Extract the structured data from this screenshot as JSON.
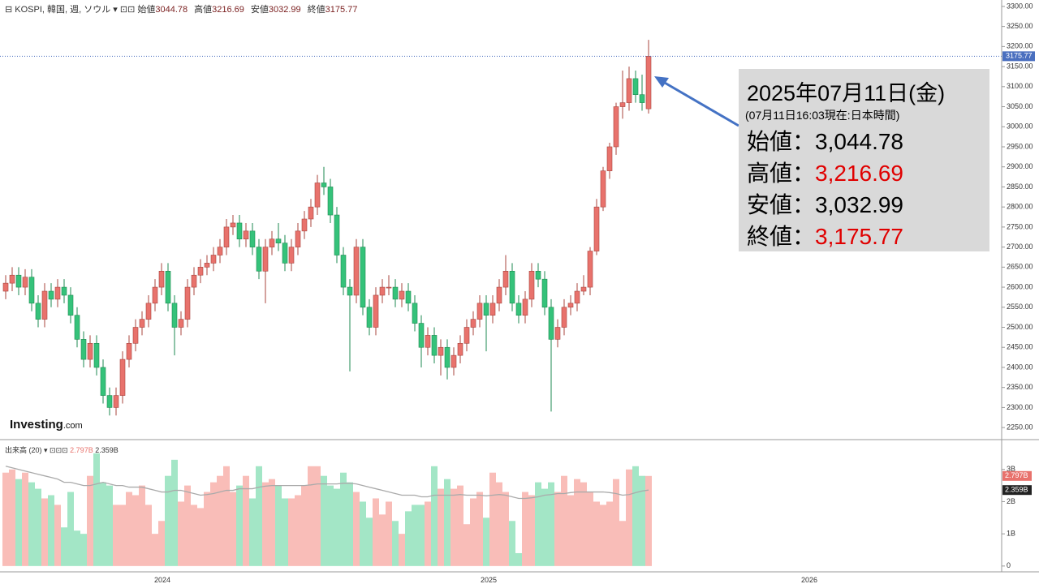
{
  "header": {
    "symbol": "KOSPI, 韓国, 週, ソウル",
    "items": [
      [
        "始値",
        "3044.78"
      ],
      [
        "高値",
        "3216.69"
      ],
      [
        "安値",
        "3032.99"
      ],
      [
        "終値",
        "3175.77"
      ]
    ]
  },
  "logo": {
    "name": "Investing",
    "suffix": ".com"
  },
  "annotation": {
    "date": "2025年07月11日(金)",
    "note": "(07月11日16:03現在:日本時間)",
    "rows": [
      {
        "label": "始値：",
        "value": "3,044.78",
        "color": "#000000"
      },
      {
        "label": "高値：",
        "value": "3,216.69",
        "color": "#e00000"
      },
      {
        "label": "安値：",
        "value": "3,032.99",
        "color": "#000000"
      },
      {
        "label": "終値：",
        "value": "3,175.77",
        "color": "#e00000"
      }
    ]
  },
  "x_labels": [
    "2024",
    "2025",
    "2026"
  ],
  "chart_data": [
    {
      "type": "candlestick",
      "up_color": "#e8726c",
      "up_edge": "#a8443e",
      "down_color": "#35c27a",
      "down_edge": "#1e8a50",
      "last_label": "3175.77",
      "last_color": "#4a6fbf",
      "ylim": [
        2224,
        3316
      ],
      "yticks": [
        {
          "value": 2250,
          "label": "2250.00"
        },
        {
          "value": 2300,
          "label": "2300.00"
        },
        {
          "value": 2350,
          "label": "2350.00"
        },
        {
          "value": 2400,
          "label": "2400.00"
        },
        {
          "value": 2450,
          "label": "2450.00"
        },
        {
          "value": 2500,
          "label": "2500.00"
        },
        {
          "value": 2550,
          "label": "2550.00"
        },
        {
          "value": 2600,
          "label": "2600.00"
        },
        {
          "value": 2650,
          "label": "2650.00"
        },
        {
          "value": 2700,
          "label": "2700.00"
        },
        {
          "value": 2750,
          "label": "2750.00"
        },
        {
          "value": 2800,
          "label": "2800.00"
        },
        {
          "value": 2850,
          "label": "2850.00"
        },
        {
          "value": 2900,
          "label": "2900.00"
        },
        {
          "value": 2950,
          "label": "2950.00"
        },
        {
          "value": 3000,
          "label": "3000.00"
        },
        {
          "value": 3050,
          "label": "3050.00"
        },
        {
          "value": 3100,
          "label": "3100.00"
        },
        {
          "value": 3150,
          "label": "3150.00"
        },
        {
          "value": 3200,
          "label": "3200.00"
        },
        {
          "value": 3250,
          "label": "3250.00"
        },
        {
          "value": 3300,
          "label": "3300.00"
        }
      ],
      "ohlc": [
        [
          2590,
          2630,
          2570,
          2610
        ],
        [
          2610,
          2650,
          2590,
          2630
        ],
        [
          2630,
          2650,
          2580,
          2600
        ],
        [
          2600,
          2645,
          2580,
          2625
        ],
        [
          2625,
          2645,
          2540,
          2560
        ],
        [
          2560,
          2580,
          2500,
          2520
        ],
        [
          2520,
          2610,
          2500,
          2590
        ],
        [
          2590,
          2610,
          2550,
          2570
        ],
        [
          2570,
          2620,
          2550,
          2600
        ],
        [
          2600,
          2620,
          2560,
          2580
        ],
        [
          2580,
          2600,
          2510,
          2530
        ],
        [
          2530,
          2550,
          2450,
          2470
        ],
        [
          2470,
          2490,
          2400,
          2420
        ],
        [
          2420,
          2480,
          2400,
          2460
        ],
        [
          2460,
          2480,
          2380,
          2400
        ],
        [
          2400,
          2420,
          2310,
          2330
        ],
        [
          2330,
          2350,
          2280,
          2300
        ],
        [
          2300,
          2350,
          2280,
          2330
        ],
        [
          2330,
          2440,
          2310,
          2420
        ],
        [
          2420,
          2480,
          2400,
          2460
        ],
        [
          2460,
          2520,
          2440,
          2500
        ],
        [
          2500,
          2540,
          2480,
          2520
        ],
        [
          2520,
          2580,
          2500,
          2560
        ],
        [
          2560,
          2620,
          2540,
          2600
        ],
        [
          2600,
          2660,
          2580,
          2640
        ],
        [
          2640,
          2660,
          2540,
          2560
        ],
        [
          2560,
          2580,
          2430,
          2500
        ],
        [
          2500,
          2540,
          2480,
          2520
        ],
        [
          2520,
          2620,
          2500,
          2600
        ],
        [
          2600,
          2650,
          2580,
          2630
        ],
        [
          2630,
          2670,
          2610,
          2650
        ],
        [
          2650,
          2680,
          2630,
          2660
        ],
        [
          2660,
          2700,
          2640,
          2680
        ],
        [
          2680,
          2720,
          2660,
          2700
        ],
        [
          2700,
          2770,
          2680,
          2750
        ],
        [
          2750,
          2780,
          2730,
          2760
        ],
        [
          2760,
          2780,
          2700,
          2720
        ],
        [
          2720,
          2760,
          2700,
          2740
        ],
        [
          2740,
          2760,
          2680,
          2700
        ],
        [
          2700,
          2720,
          2620,
          2640
        ],
        [
          2640,
          2720,
          2560,
          2700
        ],
        [
          2700,
          2740,
          2680,
          2720
        ],
        [
          2720,
          2760,
          2690,
          2710
        ],
        [
          2710,
          2730,
          2640,
          2660
        ],
        [
          2660,
          2720,
          2640,
          2700
        ],
        [
          2700,
          2760,
          2680,
          2740
        ],
        [
          2740,
          2790,
          2720,
          2770
        ],
        [
          2770,
          2820,
          2750,
          2800
        ],
        [
          2800,
          2880,
          2780,
          2860
        ],
        [
          2860,
          2900,
          2830,
          2850
        ],
        [
          2850,
          2870,
          2760,
          2780
        ],
        [
          2780,
          2800,
          2660,
          2680
        ],
        [
          2680,
          2700,
          2580,
          2600
        ],
        [
          2600,
          2620,
          2390,
          2580
        ],
        [
          2580,
          2720,
          2560,
          2700
        ],
        [
          2700,
          2720,
          2530,
          2550
        ],
        [
          2550,
          2570,
          2480,
          2500
        ],
        [
          2500,
          2600,
          2480,
          2580
        ],
        [
          2580,
          2620,
          2560,
          2600
        ],
        [
          2600,
          2630,
          2580,
          2600
        ],
        [
          2600,
          2620,
          2550,
          2570
        ],
        [
          2570,
          2610,
          2550,
          2590
        ],
        [
          2590,
          2610,
          2540,
          2560
        ],
        [
          2560,
          2580,
          2490,
          2510
        ],
        [
          2510,
          2530,
          2400,
          2450
        ],
        [
          2450,
          2500,
          2430,
          2480
        ],
        [
          2480,
          2500,
          2410,
          2430
        ],
        [
          2430,
          2470,
          2380,
          2450
        ],
        [
          2450,
          2470,
          2370,
          2400
        ],
        [
          2400,
          2450,
          2380,
          2430
        ],
        [
          2430,
          2480,
          2410,
          2460
        ],
        [
          2460,
          2520,
          2440,
          2500
        ],
        [
          2500,
          2540,
          2480,
          2520
        ],
        [
          2520,
          2580,
          2500,
          2560
        ],
        [
          2560,
          2580,
          2440,
          2530
        ],
        [
          2530,
          2580,
          2510,
          2560
        ],
        [
          2560,
          2620,
          2540,
          2600
        ],
        [
          2600,
          2680,
          2580,
          2640
        ],
        [
          2640,
          2660,
          2540,
          2560
        ],
        [
          2560,
          2580,
          2510,
          2530
        ],
        [
          2530,
          2590,
          2510,
          2570
        ],
        [
          2570,
          2660,
          2550,
          2640
        ],
        [
          2640,
          2660,
          2600,
          2620
        ],
        [
          2620,
          2640,
          2530,
          2550
        ],
        [
          2550,
          2570,
          2290,
          2470
        ],
        [
          2470,
          2520,
          2450,
          2500
        ],
        [
          2500,
          2570,
          2480,
          2550
        ],
        [
          2550,
          2580,
          2530,
          2560
        ],
        [
          2560,
          2610,
          2540,
          2590
        ],
        [
          2590,
          2630,
          2580,
          2600
        ],
        [
          2600,
          2700,
          2580,
          2690
        ],
        [
          2690,
          2820,
          2680,
          2800
        ],
        [
          2800,
          2900,
          2790,
          2890
        ],
        [
          2890,
          2960,
          2870,
          2950
        ],
        [
          2950,
          3060,
          2930,
          3050
        ],
        [
          3050,
          3140,
          3020,
          3060
        ],
        [
          3060,
          3150,
          3040,
          3120
        ],
        [
          3120,
          3140,
          3060,
          3080
        ],
        [
          3080,
          3130,
          3040,
          3060
        ],
        [
          3044.78,
          3216.69,
          3032.99,
          3175.77
        ]
      ]
    },
    {
      "type": "bar",
      "title": "出来高 (20)",
      "up_color": "#f9bdb8",
      "down_color": "#a3e6c6",
      "ylim": [
        -0.18,
        3.85
      ],
      "yticks": [
        {
          "value": 0,
          "label": "0"
        },
        {
          "value": 1,
          "label": "1B"
        },
        {
          "value": 2,
          "label": "2B"
        },
        {
          "value": 3,
          "label": "3B"
        }
      ],
      "series": [
        {
          "name": "出来高",
          "values": [
            2.9,
            3.0,
            2.7,
            2.9,
            2.6,
            2.4,
            2.1,
            2.2,
            1.9,
            1.2,
            2.3,
            1.1,
            1.0,
            2.8,
            3.5,
            2.6,
            2.5,
            1.9,
            1.9,
            2.3,
            2.2,
            2.5,
            1.9,
            1.0,
            1.4,
            2.8,
            3.3,
            2.0,
            2.5,
            1.9,
            1.8,
            2.3,
            2.6,
            2.8,
            3.1,
            2.3,
            2.5,
            2.8,
            2.1,
            3.1,
            2.6,
            2.7,
            2.5,
            2.1,
            2.1,
            2.2,
            2.5,
            3.1,
            3.1,
            2.8,
            2.5,
            2.4,
            2.9,
            2.6,
            2.3,
            2.0,
            1.5,
            2.1,
            1.6,
            2.0,
            1.4,
            1.0,
            1.7,
            1.9,
            1.9,
            2.0,
            3.1,
            2.4,
            2.7,
            2.4,
            2.5,
            1.3,
            2.1,
            2.3,
            1.5,
            2.9,
            2.6,
            2.3,
            1.4,
            0.4,
            2.3,
            2.2,
            2.6,
            2.4,
            2.6,
            2.3,
            2.8,
            2.2,
            2.7,
            2.6,
            2.3,
            2.0,
            1.9,
            2.0,
            2.7,
            1.4,
            3.0,
            3.1,
            2.8,
            2.797
          ],
          "last_label": "2.797B",
          "label_color": "#e8726c"
        },
        {
          "name": "MA",
          "color": "#aaaaaa",
          "label_color": "#222222",
          "last_label": "2.359B",
          "values": [
            3.1,
            3.05,
            3.0,
            2.95,
            2.9,
            2.85,
            2.8,
            2.75,
            2.7,
            2.6,
            2.6,
            2.55,
            2.5,
            2.5,
            2.55,
            2.6,
            2.55,
            2.5,
            2.5,
            2.45,
            2.45,
            2.45,
            2.4,
            2.35,
            2.3,
            2.3,
            2.35,
            2.35,
            2.3,
            2.25,
            2.2,
            2.22,
            2.25,
            2.3,
            2.35,
            2.35,
            2.4,
            2.4,
            2.4,
            2.45,
            2.48,
            2.5,
            2.5,
            2.5,
            2.5,
            2.5,
            2.5,
            2.52,
            2.55,
            2.55,
            2.55,
            2.55,
            2.57,
            2.57,
            2.55,
            2.5,
            2.45,
            2.4,
            2.35,
            2.3,
            2.25,
            2.2,
            2.2,
            2.2,
            2.15,
            2.15,
            2.2,
            2.2,
            2.2,
            2.2,
            2.22,
            2.2,
            2.2,
            2.2,
            2.18,
            2.2,
            2.22,
            2.2,
            2.15,
            2.1,
            2.1,
            2.12,
            2.15,
            2.2,
            2.22,
            2.25,
            2.25,
            2.28,
            2.3,
            2.3,
            2.3,
            2.3,
            2.3,
            2.28,
            2.25,
            2.2,
            2.22,
            2.28,
            2.33,
            2.359
          ]
        }
      ]
    }
  ]
}
